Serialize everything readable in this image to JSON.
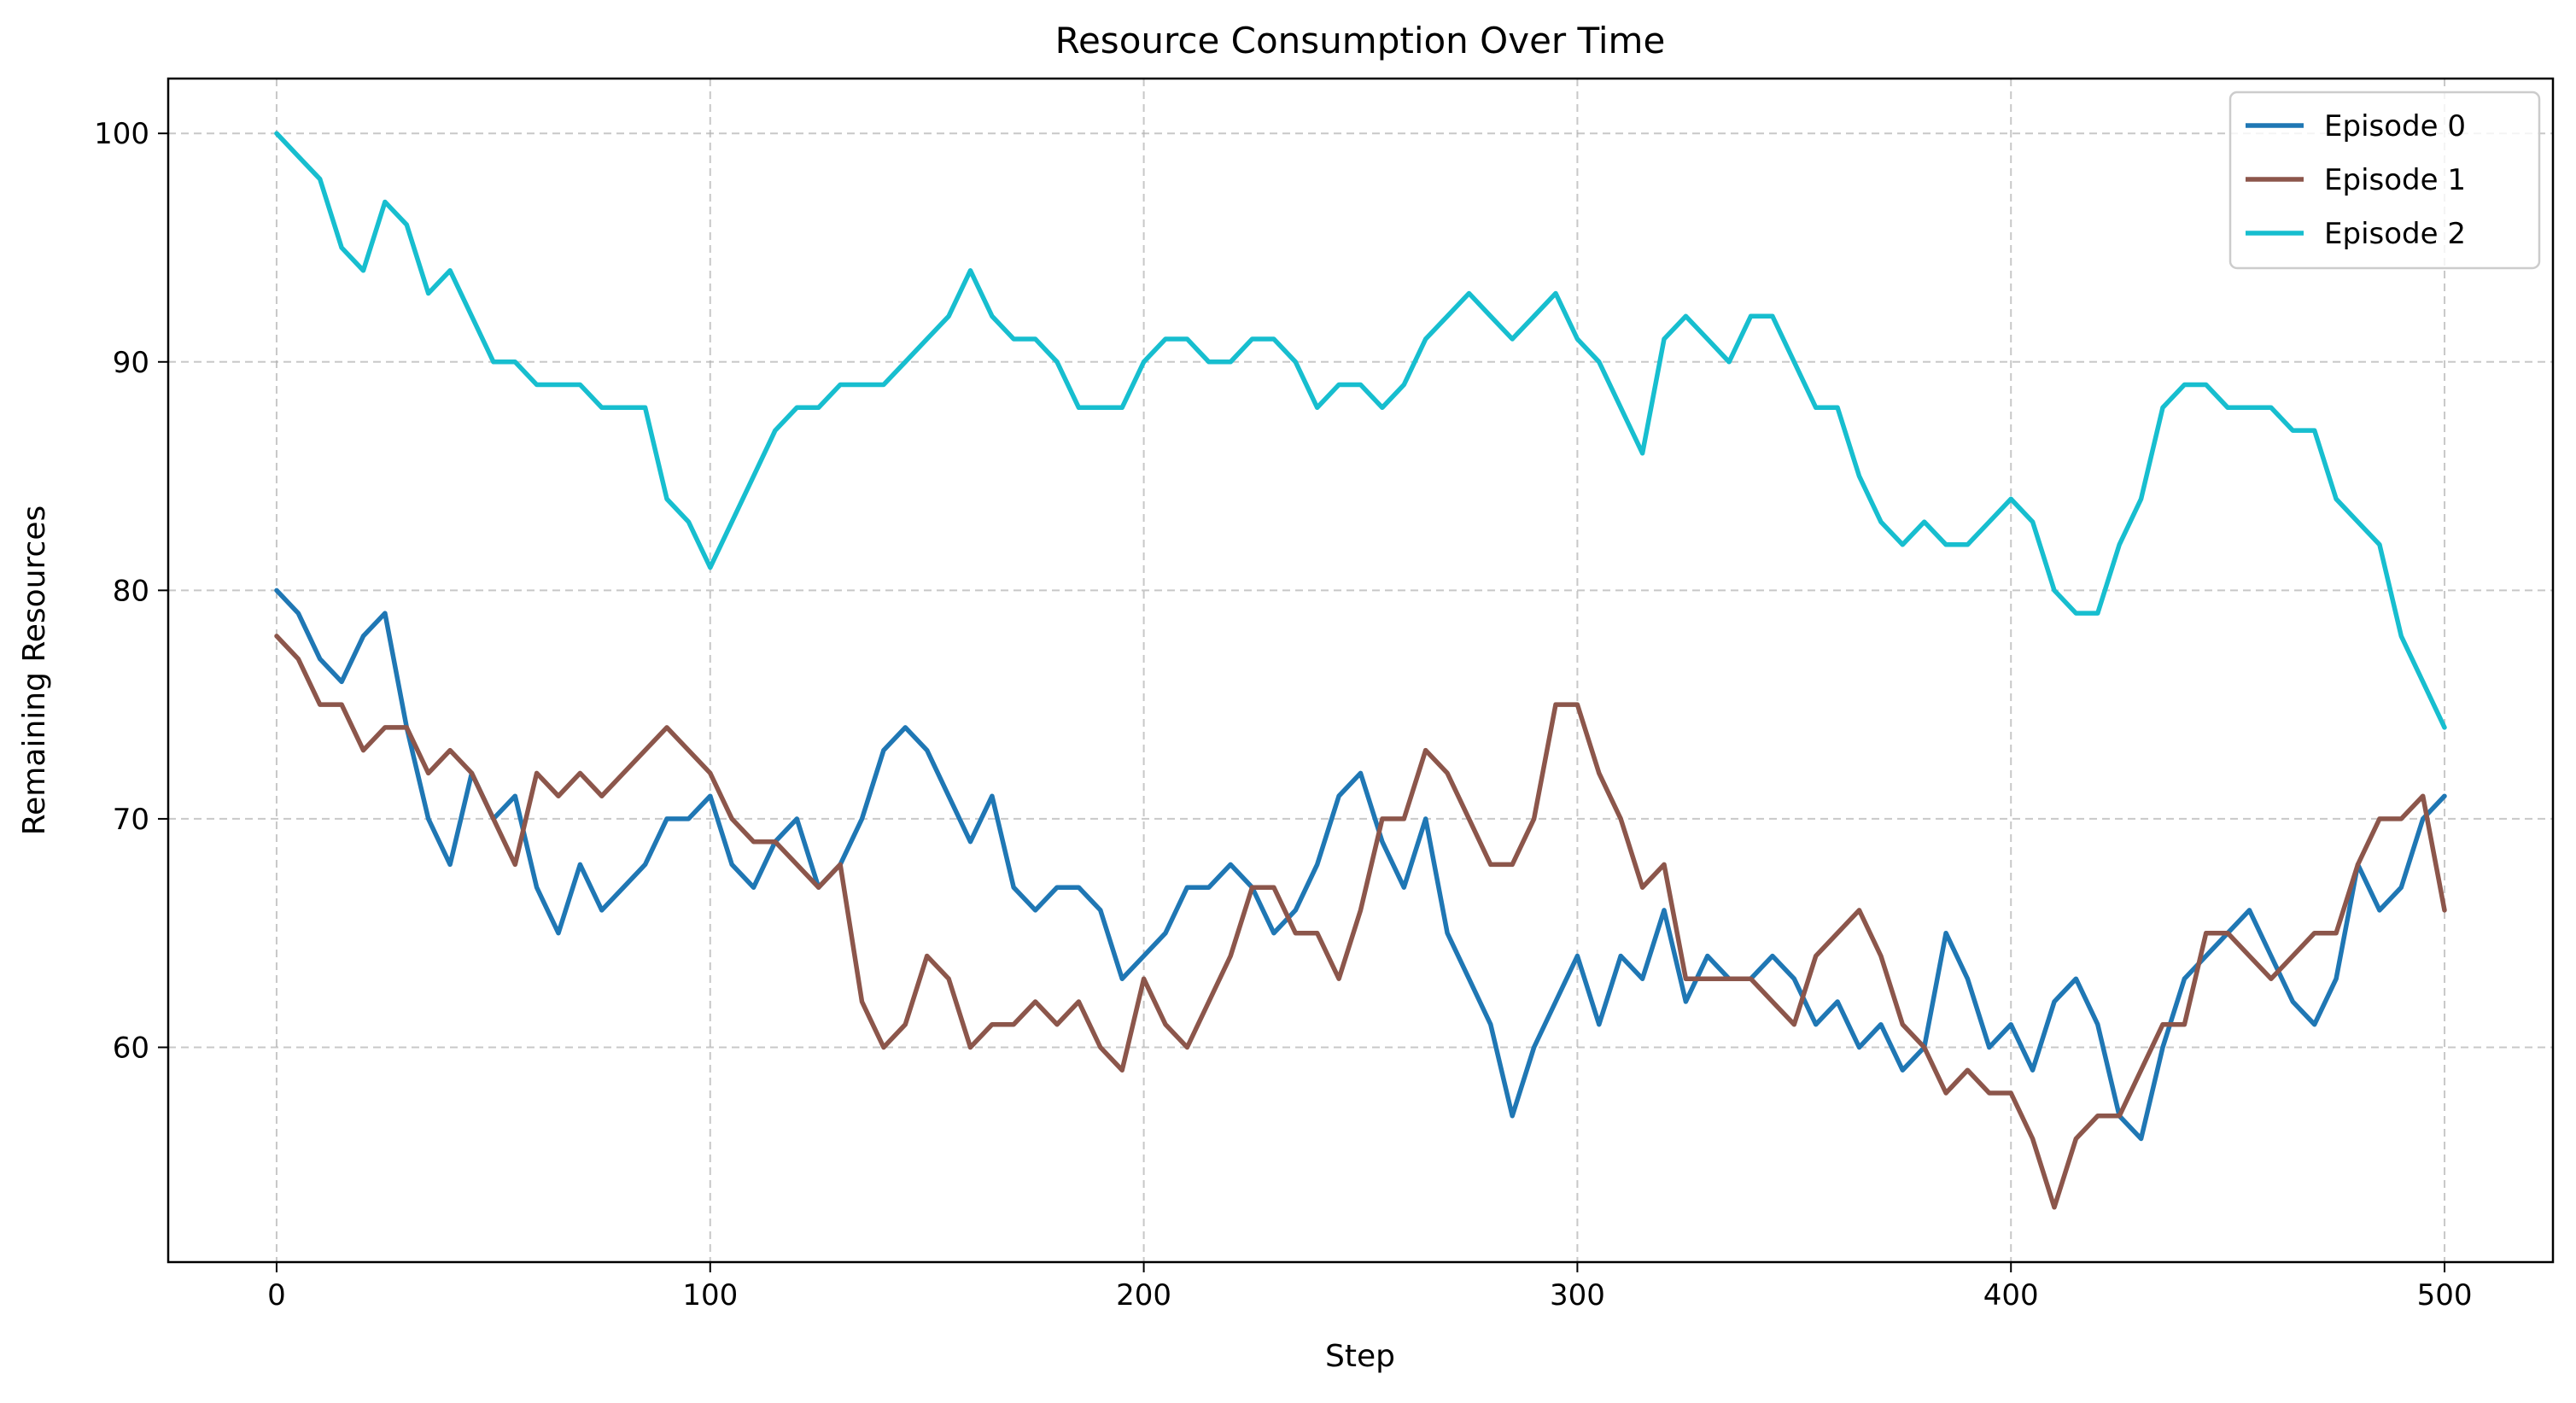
{
  "chart_data": {
    "type": "line",
    "title": "Resource Consumption Over Time",
    "xlabel": "Step",
    "ylabel": "Remaining Resources",
    "xlim": [
      -25,
      525
    ],
    "ylim": [
      50.6,
      102.4
    ],
    "xticks": [
      0,
      100,
      200,
      300,
      400,
      500
    ],
    "yticks": [
      60,
      70,
      80,
      90,
      100
    ],
    "grid": true,
    "legend_position": "top-right",
    "series": [
      {
        "name": "Episode 0",
        "color": "#1f77b4",
        "x": [
          0,
          5,
          10,
          15,
          20,
          25,
          30,
          35,
          40,
          45,
          50,
          55,
          60,
          65,
          70,
          75,
          80,
          85,
          90,
          95,
          100,
          105,
          110,
          115,
          120,
          125,
          130,
          135,
          140,
          145,
          150,
          155,
          160,
          165,
          170,
          175,
          180,
          185,
          190,
          195,
          200,
          205,
          210,
          215,
          220,
          225,
          230,
          235,
          240,
          245,
          250,
          255,
          260,
          265,
          270,
          275,
          280,
          285,
          290,
          295,
          300,
          305,
          310,
          315,
          320,
          325,
          330,
          335,
          340,
          345,
          350,
          355,
          360,
          365,
          370,
          375,
          380,
          385,
          390,
          395,
          400,
          405,
          410,
          415,
          420,
          425,
          430,
          435,
          440,
          445,
          450,
          455,
          460,
          465,
          470,
          475,
          480,
          485,
          490,
          495,
          500
        ],
        "y": [
          80,
          79,
          77,
          76,
          78,
          79,
          74,
          70,
          68,
          72,
          70,
          71,
          67,
          65,
          68,
          66,
          67,
          68,
          70,
          70,
          71,
          68,
          67,
          69,
          70,
          67,
          68,
          70,
          73,
          74,
          73,
          71,
          69,
          71,
          67,
          66,
          67,
          67,
          66,
          63,
          64,
          65,
          67,
          67,
          68,
          67,
          65,
          66,
          68,
          71,
          72,
          69,
          67,
          70,
          65,
          63,
          61,
          57,
          60,
          62,
          64,
          61,
          64,
          63,
          66,
          62,
          64,
          63,
          63,
          64,
          63,
          61,
          62,
          60,
          61,
          59,
          60,
          65,
          63,
          60,
          61,
          59,
          62,
          63,
          61,
          57,
          56,
          60,
          63,
          64,
          65,
          66,
          64,
          62,
          61,
          63,
          68,
          66,
          67,
          70,
          71
        ]
      },
      {
        "name": "Episode 1",
        "color": "#8c564b",
        "x": [
          0,
          5,
          10,
          15,
          20,
          25,
          30,
          35,
          40,
          45,
          50,
          55,
          60,
          65,
          70,
          75,
          80,
          85,
          90,
          95,
          100,
          105,
          110,
          115,
          120,
          125,
          130,
          135,
          140,
          145,
          150,
          155,
          160,
          165,
          170,
          175,
          180,
          185,
          190,
          195,
          200,
          205,
          210,
          215,
          220,
          225,
          230,
          235,
          240,
          245,
          250,
          255,
          260,
          265,
          270,
          275,
          280,
          285,
          290,
          295,
          300,
          305,
          310,
          315,
          320,
          325,
          330,
          335,
          340,
          345,
          350,
          355,
          360,
          365,
          370,
          375,
          380,
          385,
          390,
          395,
          400,
          405,
          410,
          415,
          420,
          425,
          430,
          435,
          440,
          445,
          450,
          455,
          460,
          465,
          470,
          475,
          480,
          485,
          490,
          495,
          500
        ],
        "y": [
          78,
          77,
          75,
          75,
          73,
          74,
          74,
          72,
          73,
          72,
          70,
          68,
          72,
          71,
          72,
          71,
          72,
          73,
          74,
          73,
          72,
          70,
          69,
          69,
          68,
          67,
          68,
          62,
          60,
          61,
          64,
          63,
          60,
          61,
          61,
          62,
          61,
          62,
          60,
          59,
          63,
          61,
          60,
          62,
          64,
          67,
          67,
          65,
          65,
          63,
          66,
          70,
          70,
          73,
          72,
          70,
          68,
          68,
          70,
          75,
          75,
          72,
          70,
          67,
          68,
          63,
          63,
          63,
          63,
          62,
          61,
          64,
          65,
          66,
          64,
          61,
          60,
          58,
          59,
          58,
          58,
          56,
          53,
          56,
          57,
          57,
          59,
          61,
          61,
          65,
          65,
          64,
          63,
          64,
          65,
          65,
          68,
          70,
          70,
          71,
          66
        ]
      },
      {
        "name": "Episode 2",
        "color": "#17becf",
        "x": [
          0,
          5,
          10,
          15,
          20,
          25,
          30,
          35,
          40,
          45,
          50,
          55,
          60,
          65,
          70,
          75,
          80,
          85,
          90,
          95,
          100,
          105,
          110,
          115,
          120,
          125,
          130,
          135,
          140,
          145,
          150,
          155,
          160,
          165,
          170,
          175,
          180,
          185,
          190,
          195,
          200,
          205,
          210,
          215,
          220,
          225,
          230,
          235,
          240,
          245,
          250,
          255,
          260,
          265,
          270,
          275,
          280,
          285,
          290,
          295,
          300,
          305,
          310,
          315,
          320,
          325,
          330,
          335,
          340,
          345,
          350,
          355,
          360,
          365,
          370,
          375,
          380,
          385,
          390,
          395,
          400,
          405,
          410,
          415,
          420,
          425,
          430,
          435,
          440,
          445,
          450,
          455,
          460,
          465,
          470,
          475,
          480,
          485,
          490,
          495,
          500
        ],
        "y": [
          100,
          99,
          98,
          95,
          94,
          97,
          96,
          93,
          94,
          92,
          90,
          90,
          89,
          89,
          89,
          88,
          88,
          88,
          84,
          83,
          81,
          83,
          85,
          87,
          88,
          88,
          89,
          89,
          89,
          90,
          91,
          92,
          94,
          92,
          91,
          91,
          90,
          88,
          88,
          88,
          90,
          91,
          91,
          90,
          90,
          91,
          91,
          90,
          88,
          89,
          89,
          88,
          89,
          91,
          92,
          93,
          92,
          91,
          92,
          93,
          91,
          90,
          88,
          86,
          91,
          92,
          91,
          90,
          92,
          92,
          90,
          88,
          88,
          85,
          83,
          82,
          83,
          82,
          82,
          83,
          84,
          83,
          80,
          79,
          79,
          82,
          84,
          88,
          89,
          89,
          88,
          88,
          88,
          87,
          87,
          84,
          83,
          82,
          78,
          76,
          74
        ]
      }
    ]
  }
}
